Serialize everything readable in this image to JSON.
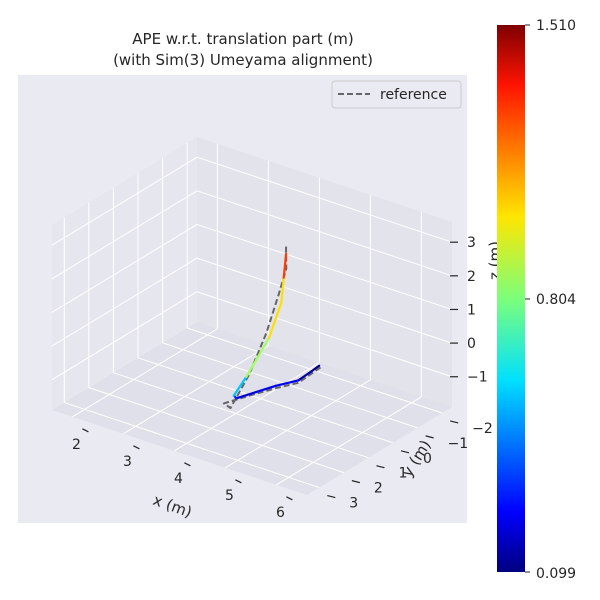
{
  "chart_data": {
    "type": "line",
    "projection": "3d",
    "title": "APE w.r.t. translation part (m)",
    "subtitle": "(with Sim(3) Umeyama alignment)",
    "xlabel": "x (m)",
    "ylabel": "y (m)",
    "zlabel": "z (m)",
    "x_ticks": [
      "2",
      "3",
      "4",
      "5",
      "6"
    ],
    "y_ticks": [
      "−2",
      "−1",
      "0",
      "1",
      "2",
      "3"
    ],
    "z_ticks": [
      "−1",
      "0",
      "1",
      "2",
      "3"
    ],
    "xlim": [
      1.6,
      6.6
    ],
    "ylim": [
      -2.4,
      3.5
    ],
    "zlim": [
      -1.9,
      3.6
    ],
    "grid": true,
    "legend": {
      "position": "top-right",
      "entries": [
        {
          "label": "reference",
          "style": "dashed",
          "color": "#666666"
        }
      ]
    },
    "colorbar": {
      "colormap": "jet",
      "min": 0.099,
      "max": 1.51,
      "tick_labels": [
        "1.510",
        "0.804",
        "0.099"
      ]
    },
    "series": [
      {
        "name": "reference",
        "style": "dashed",
        "points": [
          [
            4.6,
            -1.2,
            -1.2
          ],
          [
            4.55,
            -0.9,
            -1.3
          ],
          [
            4.5,
            -0.5,
            -1.4
          ],
          [
            4.4,
            0.2,
            -1.3
          ],
          [
            4.3,
            1.0,
            -1.2
          ],
          [
            4.2,
            1.9,
            -1.1
          ],
          [
            4.45,
            2.15,
            -1.0
          ],
          [
            4.55,
            1.6,
            -0.2
          ],
          [
            4.6,
            1.0,
            0.8
          ],
          [
            4.65,
            0.6,
            1.8
          ],
          [
            4.7,
            0.4,
            2.5
          ],
          [
            4.55,
            0.1,
            3.0
          ]
        ]
      },
      {
        "name": "",
        "style": "solid",
        "colored_by_error": true,
        "points": [
          [
            4.55,
            -1.25,
            -1.2
          ],
          [
            4.5,
            -1.0,
            -1.3
          ],
          [
            4.45,
            -0.6,
            -1.4
          ],
          [
            4.35,
            0.1,
            -1.3
          ],
          [
            4.3,
            0.8,
            -1.2
          ],
          [
            4.25,
            1.5,
            -1.1
          ],
          [
            4.3,
            1.7,
            -0.9
          ],
          [
            4.35,
            1.3,
            -0.5
          ],
          [
            4.6,
            0.9,
            0.6
          ],
          [
            4.65,
            0.5,
            1.5
          ],
          [
            4.65,
            0.4,
            2.2
          ],
          [
            4.6,
            0.2,
            2.8
          ]
        ],
        "errors": [
          0.12,
          0.1,
          0.2,
          0.3,
          0.2,
          0.25,
          0.4,
          0.7,
          1.0,
          1.05,
          1.0,
          1.5
        ]
      }
    ]
  }
}
